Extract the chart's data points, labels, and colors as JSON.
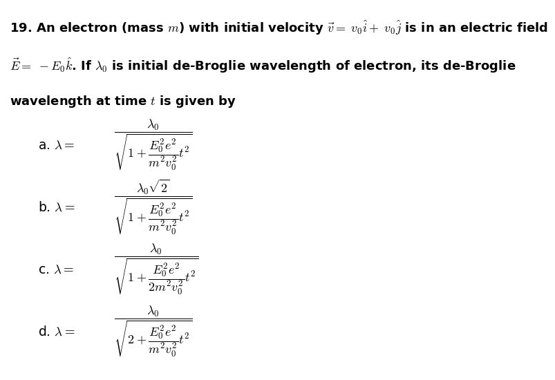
{
  "background_color": "#ffffff",
  "text_color": "#000000",
  "figsize": [
    8.04,
    5.5
  ],
  "dpi": 100,
  "header_fs": 13.0,
  "label_fs": 13.5,
  "expr_fs": 13.0
}
